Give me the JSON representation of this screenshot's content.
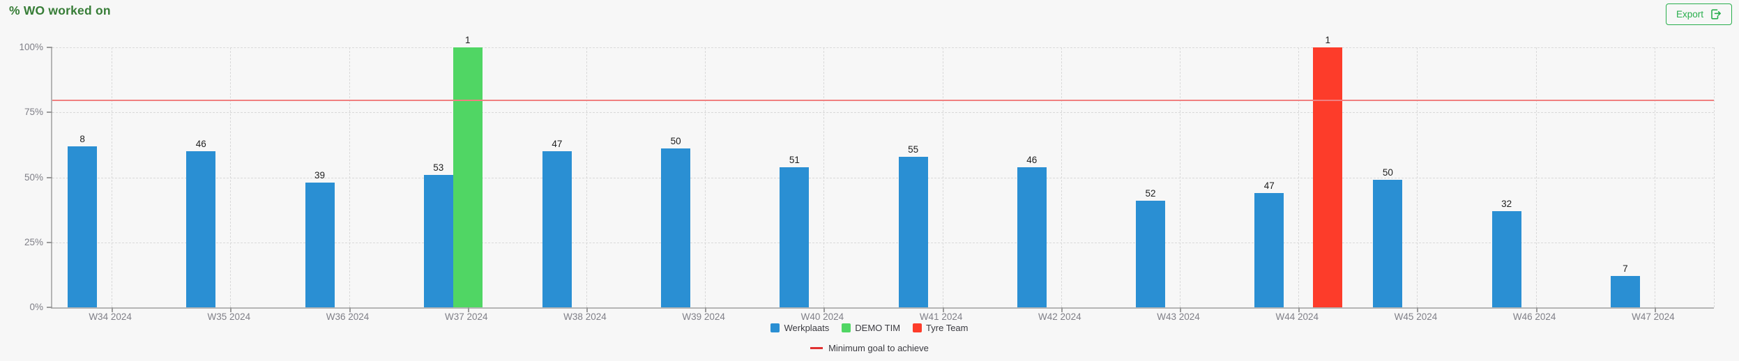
{
  "header": {
    "title": "% WO worked on",
    "export_label": "Export"
  },
  "colors": {
    "background": "#f7f7f7",
    "title_green": "#377d37",
    "export_green": "#28ae4c",
    "axis_text": "#7f7f87",
    "data_label": "#1e1e1e",
    "goal_line_red": "#f08080"
  },
  "chart_data": {
    "type": "bar",
    "title": "% WO worked on",
    "categories": [
      "W34 2024",
      "W35 2024",
      "W36 2024",
      "W37 2024",
      "W38 2024",
      "W39 2024",
      "W40 2024",
      "W41 2024",
      "W42 2024",
      "W43 2024",
      "W44 2024",
      "W45 2024",
      "W46 2024",
      "W47 2024"
    ],
    "yaxis": {
      "min": 0,
      "max": 100,
      "ticks": [
        100,
        75,
        50,
        25,
        0
      ],
      "tick_labels": [
        "100%",
        "75%",
        "50%",
        "25%",
        "0%"
      ]
    },
    "series": [
      {
        "name": "Werkplaats",
        "color": "#2a8fd3",
        "values_pct": [
          62,
          60,
          48,
          51,
          60,
          61,
          54,
          58,
          54,
          41,
          44,
          49,
          37,
          12
        ],
        "bar_labels": [
          "8",
          "46",
          "39",
          "53",
          "47",
          "50",
          "51",
          "55",
          "46",
          "52",
          "47",
          "50",
          "32",
          "7"
        ]
      },
      {
        "name": "DEMO TIM",
        "color": "#50d664",
        "values_pct": [
          null,
          null,
          null,
          100,
          null,
          null,
          null,
          null,
          null,
          null,
          null,
          null,
          null,
          null
        ],
        "bar_labels": [
          null,
          null,
          null,
          "1",
          null,
          null,
          null,
          null,
          null,
          null,
          null,
          null,
          null,
          null
        ]
      },
      {
        "name": "Tyre Team",
        "color": "#fd3c2a",
        "values_pct": [
          null,
          null,
          null,
          null,
          null,
          null,
          null,
          null,
          null,
          null,
          100,
          null,
          null,
          null
        ],
        "bar_labels": [
          null,
          null,
          null,
          null,
          null,
          null,
          null,
          null,
          null,
          null,
          "1",
          null,
          null,
          null
        ]
      }
    ],
    "goal_line": {
      "label": "Minimum goal to achieve",
      "value_pct": 80,
      "color": "#f08080"
    },
    "legend_position": "bottom",
    "grid": true
  }
}
